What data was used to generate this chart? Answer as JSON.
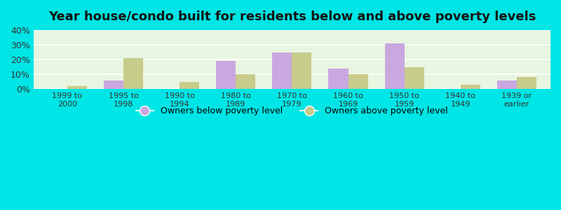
{
  "title": "Year house/condo built for residents below and above poverty levels",
  "categories": [
    "1999 to\n2000",
    "1995 to\n1998",
    "1990 to\n1994",
    "1980 to\n1989",
    "1970 to\n1979",
    "1960 to\n1969",
    "1950 to\n1959",
    "1940 to\n1949",
    "1939 or\nearlier"
  ],
  "below_poverty": [
    0,
    6,
    0,
    19,
    25,
    14,
    31,
    0,
    6
  ],
  "above_poverty": [
    2,
    21,
    5,
    10,
    25,
    10,
    15,
    3,
    8
  ],
  "below_color": "#c9a8e0",
  "above_color": "#c8cc8a",
  "plot_bg": "#e8f5e0",
  "outer_bg": "#00e5e5",
  "ylim": [
    0,
    40
  ],
  "yticks": [
    0,
    10,
    20,
    30,
    40
  ],
  "bar_width": 0.35,
  "title_fontsize": 13,
  "legend_below_label": "Owners below poverty level",
  "legend_above_label": "Owners above poverty level"
}
